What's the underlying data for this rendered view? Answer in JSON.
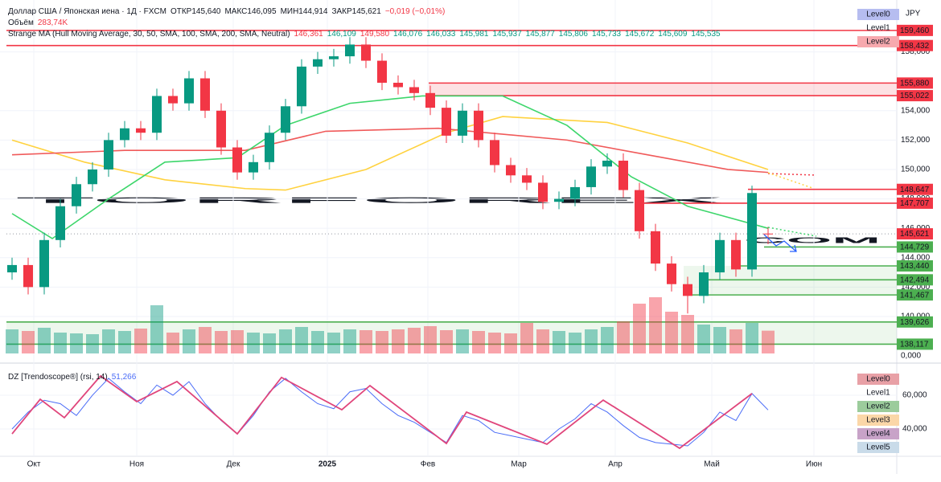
{
  "chart_data": {
    "type": "candlestick",
    "title": "Доллар США / Японская иена · 1Д · FXCM",
    "ohlc_header": [
      "ОТКР145,640",
      "МАКС146,095",
      "МИН144,914",
      "ЗАКР145,621",
      "−0,019 (−0,01%)"
    ],
    "indicator": "Strange MA (Hull Moving Average, 30, 50, SMA, 100, SMA, 200, SMA, Neutral)",
    "indicator_values": [
      {
        "label": "146,361",
        "color": "#f23645"
      },
      {
        "label": "146,109",
        "color": "#089981"
      },
      {
        "label": "149,580",
        "color": "#f23645"
      },
      {
        "label": "146,076",
        "color": "#089981"
      },
      {
        "label": "146,033",
        "color": "#089981"
      },
      {
        "label": "145,981",
        "color": "#089981"
      },
      {
        "label": "145,937",
        "color": "#089981"
      },
      {
        "label": "145,877",
        "color": "#089981"
      },
      {
        "label": "145,806",
        "color": "#089981"
      },
      {
        "label": "145,733",
        "color": "#089981"
      },
      {
        "label": "145,672",
        "color": "#089981"
      },
      {
        "label": "145,609",
        "color": "#089981"
      },
      {
        "label": "145,535",
        "color": "#089981"
      }
    ],
    "currency": "JPY",
    "watermark": [
      "TORFOREX",
      ".COM"
    ],
    "level_buttons": [
      "Level0",
      "Level1",
      "Level2"
    ],
    "up_color": "#089981",
    "down_color": "#f23645",
    "xticks": [
      {
        "value": 1.35,
        "label": "Окт"
      },
      {
        "value": 7.75,
        "label": "Ноя"
      },
      {
        "value": 13.75,
        "label": "Дек"
      },
      {
        "value": 19.6,
        "label": "2025"
      },
      {
        "value": 25.85,
        "label": "Фев"
      },
      {
        "value": 31.5,
        "label": "Мар"
      },
      {
        "value": 37.5,
        "label": "Апр"
      },
      {
        "value": 43.5,
        "label": "Май"
      },
      {
        "value": 49.85,
        "label": "Июн"
      }
    ],
    "ylim": [
      137.32,
      159.89
    ],
    "yticks": [
      {
        "value": 140,
        "label": "140,000"
      },
      {
        "value": 142,
        "label": "142,000"
      },
      {
        "value": 144,
        "label": "144,000"
      },
      {
        "value": 146,
        "label": "146,000"
      },
      {
        "value": 148,
        "label": "148,000"
      },
      {
        "value": 150,
        "label": "150,000"
      },
      {
        "value": 152,
        "label": "152,000"
      },
      {
        "value": 154,
        "label": "154,000"
      },
      {
        "value": 158,
        "label": "158,000"
      }
    ],
    "open": [
      143.0,
      143.5,
      142.0,
      145.2,
      147.5,
      149.0,
      150.0,
      152.0,
      152.8,
      152.5,
      155.0,
      154.5,
      156.2,
      154.0,
      151.5,
      149.8,
      150.5,
      152.5,
      154.3,
      157.0,
      157.5,
      157.7,
      158.5,
      157.4,
      155.9,
      155.6,
      155.2,
      154.2,
      152.3,
      154.0,
      152.0,
      150.3,
      149.6,
      149.1,
      147.8,
      148.0,
      148.8,
      150.2,
      150.6,
      148.6,
      145.8,
      143.6,
      142.2,
      141.4,
      143.0,
      145.2,
      143.2,
      145.64
    ],
    "high": [
      144.0,
      144.0,
      145.7,
      148.0,
      149.5,
      150.5,
      152.5,
      153.3,
      153.3,
      155.5,
      155.5,
      156.7,
      156.7,
      154.5,
      152.0,
      151.0,
      153.0,
      154.8,
      157.5,
      158.0,
      158.2,
      159.0,
      159.0,
      157.9,
      156.4,
      156.1,
      155.7,
      154.7,
      154.5,
      154.5,
      152.5,
      150.8,
      150.1,
      149.6,
      148.5,
      149.3,
      150.7,
      151.1,
      151.1,
      149.1,
      146.3,
      144.1,
      142.7,
      143.5,
      145.7,
      145.7,
      148.9,
      146.095
    ],
    "low": [
      142.5,
      141.5,
      141.5,
      144.7,
      147.0,
      148.5,
      149.5,
      151.5,
      152.0,
      152.0,
      154.0,
      154.0,
      153.5,
      151.0,
      149.3,
      149.3,
      150.0,
      152.0,
      153.8,
      156.5,
      157.0,
      157.2,
      156.9,
      155.4,
      155.1,
      154.7,
      153.7,
      151.8,
      151.8,
      151.5,
      149.8,
      149.1,
      148.6,
      147.3,
      147.3,
      147.5,
      148.3,
      149.7,
      148.1,
      145.3,
      143.1,
      141.7,
      140.2,
      140.9,
      142.5,
      142.7,
      142.7,
      144.914
    ],
    "close": [
      143.5,
      142.0,
      145.2,
      147.5,
      149.0,
      150.0,
      152.0,
      152.8,
      152.5,
      155.0,
      154.5,
      156.2,
      154.0,
      151.5,
      149.8,
      150.5,
      152.5,
      154.3,
      157.0,
      157.5,
      157.7,
      158.5,
      157.4,
      155.9,
      155.6,
      155.2,
      154.2,
      152.3,
      154.0,
      152.0,
      150.3,
      149.6,
      149.1,
      147.8,
      148.0,
      148.8,
      150.2,
      150.6,
      148.6,
      145.8,
      143.6,
      142.2,
      141.4,
      143.0,
      145.2,
      143.2,
      148.4,
      145.621
    ],
    "volume": {
      "name": "Объём",
      "ylim": [
        0,
        1000
      ],
      "ytick": {
        "value": 0,
        "label": "0,000"
      },
      "current": {
        "value": 283.74,
        "label": "283,74K"
      },
      "values": [
        300,
        280,
        320,
        260,
        250,
        240,
        300,
        280,
        310,
        600,
        260,
        300,
        330,
        280,
        290,
        260,
        250,
        300,
        330,
        280,
        260,
        300,
        290,
        280,
        300,
        320,
        340,
        290,
        300,
        280,
        260,
        250,
        380,
        300,
        280,
        260,
        300,
        330,
        400,
        620,
        700,
        520,
        480,
        360,
        330,
        300,
        380,
        283.74
      ]
    },
    "ma_lines": [
      {
        "color": "#ffd23f",
        "x": [
          0,
          4.5,
          9.5,
          14.5,
          17,
          22,
          27,
          30.5,
          37,
          42,
          47
        ],
        "values": [
          152.0,
          150.5,
          149.3,
          148.7,
          148.6,
          150.0,
          152.5,
          153.6,
          153.2,
          151.8,
          150.0
        ]
      },
      {
        "color": "#f05a5a",
        "x": [
          0,
          7,
          14.5,
          19.5,
          26.5,
          34.5,
          39.5,
          44.5,
          47
        ],
        "values": [
          151.0,
          151.3,
          151.3,
          152.6,
          152.8,
          152.0,
          151.0,
          150.0,
          149.8
        ]
      },
      {
        "color": "#3dd66b",
        "x": [
          0,
          2.5,
          6,
          9.5,
          14,
          17,
          21,
          25.5,
          30.5,
          34.5,
          38.5,
          42,
          47
        ],
        "values": [
          147.0,
          145.3,
          148.0,
          150.5,
          150.8,
          153.0,
          154.5,
          155.0,
          155.0,
          153.0,
          149.5,
          147.5,
          146.0
        ]
      }
    ],
    "levels": [
      {
        "value": 159.46,
        "label": "159,460",
        "color": "#f23645"
      },
      {
        "value": 158.432,
        "label": "158,432",
        "color": "#f23645"
      },
      {
        "value": 155.88,
        "label": "155,880",
        "color": "#f23645"
      },
      {
        "value": 155.022,
        "label": "155,022",
        "color": "#f23645"
      },
      {
        "value": 148.647,
        "label": "148,647",
        "color": "#f23645"
      },
      {
        "value": 147.707,
        "label": "147,707",
        "color": "#f23645"
      },
      {
        "value": 145.621,
        "label": "145,621",
        "color": "#f23645"
      },
      {
        "value": 144.729,
        "label": "144,729",
        "color": "#4caf50"
      },
      {
        "value": 143.44,
        "label": "143,440",
        "color": "#4caf50"
      },
      {
        "value": 142.494,
        "label": "142,494",
        "color": "#4caf50"
      },
      {
        "value": 141.467,
        "label": "141,467",
        "color": "#4caf50"
      },
      {
        "value": 139.626,
        "label": "139,626",
        "color": "#4caf50"
      },
      {
        "value": 138.117,
        "label": "138,117",
        "color": "#4caf50"
      }
    ],
    "rsi": {
      "title": "DZ [Trendoscope®] (rsi, 14)",
      "color": "#4a6cf7",
      "zigzag_color": "#e0457b",
      "ylim": [
        20.5,
        75.2
      ],
      "yticks": [
        {
          "value": 60,
          "label": "60,000"
        },
        {
          "value": 40,
          "label": "40,000"
        }
      ],
      "values": [
        40,
        50,
        57,
        55,
        48,
        60,
        70,
        62,
        55,
        66,
        60,
        68,
        55,
        45,
        37,
        48,
        62,
        70,
        62,
        55,
        52,
        62,
        64,
        55,
        48,
        44,
        38,
        32,
        48,
        45,
        38,
        36,
        34,
        32,
        40,
        46,
        55,
        50,
        42,
        35,
        32,
        31,
        30,
        38,
        50,
        45,
        61,
        51.266
      ],
      "value_label": "51,266",
      "zigzag": {
        "x": [
          0,
          1.75,
          3.25,
          5.5,
          7.75,
          10.25,
          14,
          16.75,
          20.5,
          22.25,
          27,
          28.25,
          33.25,
          36.75,
          41.5,
          46
        ],
        "values": [
          37.1,
          57.6,
          46.7,
          71.4,
          56.2,
          68.1,
          37.1,
          70.5,
          51.4,
          65.7,
          31.4,
          50,
          31,
          57.1,
          28.6,
          61
        ]
      },
      "level_buttons": [
        "Level0",
        "Level1",
        "Level2",
        "Level3",
        "Level4",
        "Level5"
      ]
    }
  }
}
